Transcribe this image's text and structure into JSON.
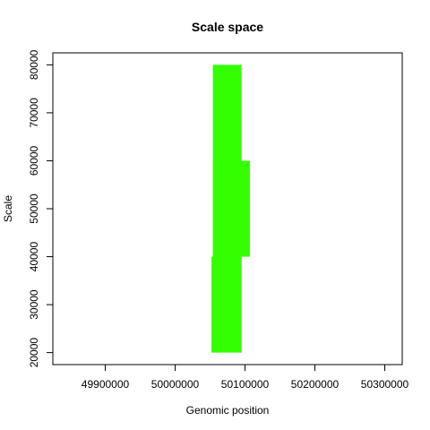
{
  "chart_data": {
    "type": "bar",
    "title": "Scale space",
    "xlabel": "Genomic position",
    "ylabel": "Scale",
    "xlim": [
      49825000,
      50325000
    ],
    "ylim": [
      17500,
      82500
    ],
    "xticks": [
      49900000,
      50000000,
      50100000,
      50200000,
      50300000
    ],
    "yticks": [
      20000,
      30000,
      40000,
      50000,
      60000,
      70000,
      80000
    ],
    "color": "#33ff00",
    "segments": [
      {
        "x0": 50052000,
        "x1": 50095000,
        "y0": 20000,
        "y1": 40000
      },
      {
        "x0": 50054000,
        "x1": 50095000,
        "y0": 40000,
        "y1": 80000
      },
      {
        "x0": 50054000,
        "x1": 50107000,
        "y0": 40000,
        "y1": 60000
      }
    ]
  }
}
